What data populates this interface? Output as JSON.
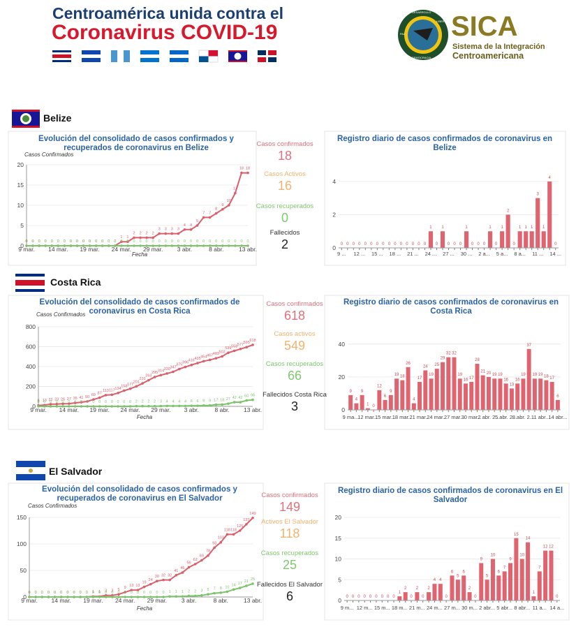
{
  "header": {
    "title_line1": "Centroamérica unida contra el",
    "title_line2": "Coronavirus COVID-19",
    "logo": "SICA",
    "logo_sub1": "Sistema de la Integración",
    "logo_sub2": "Centroamericana",
    "logo_ring": [
      "DESARROLLO",
      "LIBERTAD",
      "DEMOCRACIA",
      "PAZ"
    ]
  },
  "sections": [
    {
      "name": "Belize",
      "stats": [
        {
          "label": "Casos confirmados",
          "value": 18,
          "color": "#e0707a"
        },
        {
          "label": "Casos Activos",
          "value": 16,
          "color": "#f0b36e"
        },
        {
          "label": "Casos recuperados",
          "value": 0,
          "color": "#7fc86e"
        },
        {
          "label": "Fallecidos",
          "value": 2,
          "color": "#222222"
        }
      ]
    },
    {
      "name": "Costa Rica",
      "stats": [
        {
          "label": "Casos confirmados",
          "value": 618,
          "color": "#e0707a"
        },
        {
          "label": "Casos activos",
          "value": 549,
          "color": "#f0b36e"
        },
        {
          "label": "Casos recuperados",
          "value": 66,
          "color": "#7fc86e"
        },
        {
          "label": "Fallecidos Costa Rica",
          "value": 3,
          "color": "#222222"
        }
      ]
    },
    {
      "name": "El Salvador",
      "stats": [
        {
          "label": "Casos confirmados",
          "value": 149,
          "color": "#e0707a"
        },
        {
          "label": "Activos El Salvador",
          "value": 118,
          "color": "#f0b36e"
        },
        {
          "label": "Casos recuperados",
          "value": 25,
          "color": "#7fc86e"
        },
        {
          "label": "Fallecidos El Salvador",
          "value": 6,
          "color": "#222222"
        }
      ]
    }
  ],
  "chart_data": [
    {
      "type": "line",
      "title": "Evolución del consolidado de casos confirmados y recuperados de coronavirus en Belize",
      "y_label": "Casos Confirmados",
      "x_label": "Fecha",
      "categories": [
        "9 mar.",
        null,
        null,
        null,
        null,
        "14 mar.",
        null,
        null,
        null,
        null,
        "19 mar.",
        null,
        null,
        null,
        null,
        "24 mar.",
        null,
        null,
        null,
        null,
        "29 mar.",
        null,
        null,
        null,
        null,
        "3 abr.",
        null,
        null,
        null,
        null,
        "8 abr.",
        null,
        null,
        null,
        null,
        "13 abr."
      ],
      "ylim": [
        0,
        20
      ],
      "yticks": [
        0,
        5,
        10,
        15,
        20
      ],
      "grid": true,
      "series": [
        {
          "color": "#d9606b",
          "values": [
            0,
            0,
            0,
            0,
            0,
            0,
            0,
            0,
            0,
            0,
            0,
            0,
            0,
            0,
            0,
            1,
            1,
            2,
            2,
            2,
            2,
            3,
            3,
            3,
            3,
            4,
            4,
            5,
            7,
            7,
            8,
            9,
            10,
            13,
            18,
            18
          ]
        },
        {
          "color": "#7cc36b",
          "values": [
            0,
            0,
            0,
            0,
            0,
            0,
            0,
            0,
            0,
            0,
            0,
            0,
            0,
            0,
            0,
            0,
            0,
            0,
            0,
            0,
            0,
            0,
            0,
            0,
            0,
            0,
            0,
            0,
            0,
            0,
            0,
            0,
            0,
            0,
            0,
            0
          ]
        }
      ]
    },
    {
      "type": "bar",
      "title": "Registro diario de casos confirmados de coronavirus en Belize",
      "categories": [
        "9 ...",
        null,
        null,
        "12 ...",
        null,
        null,
        "15 ...",
        null,
        null,
        "18 ...",
        null,
        null,
        "21 ...",
        null,
        null,
        "24 ...",
        null,
        null,
        "27 ...",
        null,
        null,
        "30 ...",
        null,
        null,
        "2 a...",
        null,
        null,
        "5 a...",
        null,
        null,
        "8 a...",
        null,
        null,
        "11 ...",
        null,
        null,
        "14 ..."
      ],
      "values": [
        0,
        0,
        0,
        0,
        0,
        0,
        0,
        0,
        0,
        0,
        0,
        0,
        0,
        0,
        0,
        1,
        0,
        1,
        0,
        0,
        0,
        1,
        0,
        0,
        0,
        1,
        0,
        1,
        2,
        0,
        1,
        1,
        1,
        3,
        1,
        4,
        0
      ],
      "color": "#e0646f",
      "ylim": [
        0,
        4.5
      ],
      "yticks": [
        0,
        2,
        4
      ],
      "grid": true
    },
    {
      "type": "line",
      "title": "Evolución del consolidado de casos confirmados de coronavirus en Costa Rica",
      "y_label": "Casos Confirmados",
      "x_label": "Fecha",
      "categories": [
        "9 mar.",
        null,
        null,
        null,
        null,
        "14 mar.",
        null,
        null,
        null,
        null,
        "19 mar.",
        null,
        null,
        null,
        null,
        "24 mar.",
        null,
        null,
        null,
        null,
        "29 mar.",
        null,
        null,
        null,
        null,
        "3 abr.",
        null,
        null,
        null,
        null,
        "8 abr.",
        null,
        null,
        null,
        null,
        "13 abr."
      ],
      "ylim": [
        0,
        800
      ],
      "yticks": [
        0,
        200,
        400,
        600,
        800
      ],
      "grid": true,
      "series": [
        {
          "color": "#d9606b",
          "values": [
            9,
            13,
            22,
            23,
            26,
            27,
            35,
            41,
            50,
            69,
            87,
            113,
            117,
            134,
            158,
            177,
            201,
            231,
            263,
            295,
            314,
            330,
            347,
            375,
            396,
            416,
            435,
            454,
            467,
            483,
            502,
            539,
            558,
            577,
            595,
            618
          ]
        },
        {
          "color": "#7cc36b",
          "values": [
            0,
            0,
            0,
            0,
            0,
            0,
            0,
            0,
            0,
            0,
            0,
            0,
            0,
            0,
            0,
            0,
            2,
            2,
            2,
            2,
            3,
            4,
            4,
            4,
            4,
            6,
            6,
            9,
            9,
            17,
            18,
            27,
            42,
            42,
            60,
            66
          ]
        }
      ]
    },
    {
      "type": "bar",
      "title": "Registro diario de casos confirmados de coronavirus en Costa Rica",
      "categories": [
        "9 ma...",
        null,
        null,
        "12 mar...",
        null,
        null,
        "15 mar...",
        null,
        null,
        "18 mar...",
        null,
        null,
        "21 mar...",
        null,
        null,
        "24 mar...",
        null,
        null,
        "27 mar...",
        null,
        null,
        "30 mar...",
        null,
        null,
        "2 abr. 2...",
        null,
        null,
        "5 abr. 2...",
        null,
        null,
        "8 abr. 2...",
        null,
        null,
        "11 abr...",
        null,
        null,
        "14 abr..."
      ],
      "values": [
        9,
        4,
        9,
        1,
        0,
        12,
        6,
        9,
        19,
        18,
        26,
        4,
        17,
        24,
        19,
        25,
        29,
        32,
        32,
        19,
        16,
        17,
        28,
        21,
        20,
        19,
        19,
        16,
        13,
        16,
        19,
        37,
        19,
        19,
        18,
        17,
        6
      ],
      "color": "#e0646f",
      "ylim": [
        0,
        45
      ],
      "yticks": [
        0,
        20,
        40
      ],
      "grid": true
    },
    {
      "type": "line",
      "title": "Evolución del consolidado de casos confirmados y recuperados de coronavirus en El Salvador",
      "y_label": "Casos Confirmados",
      "x_label": "Fecha",
      "categories": [
        "9 mar.",
        null,
        null,
        null,
        null,
        "14 mar.",
        null,
        null,
        null,
        null,
        "19 mar.",
        null,
        null,
        null,
        null,
        "24 mar.",
        null,
        null,
        null,
        null,
        "29 mar.",
        null,
        null,
        null,
        null,
        "3 abr.",
        null,
        null,
        null,
        null,
        "8 abr.",
        null,
        null,
        null,
        null,
        "13 abr."
      ],
      "ylim": [
        0,
        150
      ],
      "yticks": [
        0,
        50,
        100,
        150
      ],
      "grid": true,
      "series": [
        {
          "color": "#d9606b",
          "values": [
            0,
            0,
            0,
            0,
            0,
            0,
            0,
            0,
            0,
            0,
            1,
            1,
            3,
            3,
            5,
            9,
            13,
            13,
            19,
            24,
            30,
            32,
            32,
            41,
            46,
            56,
            62,
            69,
            78,
            93,
            103,
            118,
            118,
            125,
            137,
            149
          ]
        },
        {
          "color": "#7cc36b",
          "values": [
            0,
            0,
            0,
            0,
            0,
            0,
            0,
            0,
            0,
            0,
            0,
            0,
            0,
            0,
            0,
            0,
            0,
            0,
            0,
            0,
            0,
            0,
            1,
            1,
            1,
            2,
            2,
            3,
            5,
            7,
            8,
            10,
            14,
            17,
            21,
            25
          ]
        }
      ]
    },
    {
      "type": "bar",
      "title": "Registro diario de casos confirmados de coronavirus en El Salvador",
      "categories": [
        "9 m...",
        null,
        null,
        "12 m...",
        null,
        null,
        "15 m...",
        null,
        null,
        "18 m...",
        null,
        null,
        "21 m...",
        null,
        null,
        "24 m...",
        null,
        null,
        "27 m...",
        null,
        null,
        "30 m...",
        null,
        null,
        "2 abr...",
        null,
        null,
        "5 abr...",
        null,
        null,
        "8 abr...",
        null,
        null,
        "11 a...",
        null,
        null,
        "14 a..."
      ],
      "values": [
        0,
        0,
        0,
        0,
        0,
        0,
        0,
        0,
        0,
        1,
        2,
        0,
        2,
        0,
        2,
        4,
        4,
        0,
        6,
        5,
        6,
        2,
        0,
        9,
        5,
        10,
        6,
        7,
        9,
        15,
        10,
        14,
        1,
        7,
        12,
        12,
        0
      ],
      "color": "#e0646f",
      "ylim": [
        0,
        20
      ],
      "yticks": [
        0,
        5,
        10,
        15,
        20
      ],
      "grid": true
    }
  ]
}
